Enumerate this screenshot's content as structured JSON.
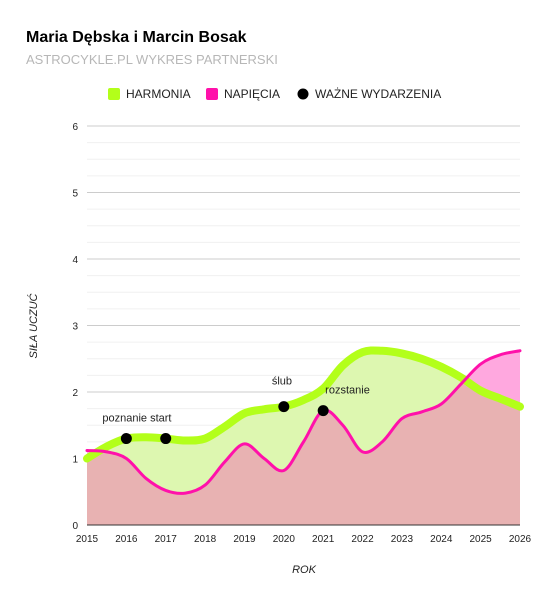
{
  "chart_data": {
    "type": "area",
    "title": "Maria Dębska i Marcin Bosak",
    "subtitle": "ASTROCYKLE.PL WYKRES PARTNERSKI",
    "xlabel": "ROK",
    "ylabel": "SIŁA UCZUĆ",
    "xlim": [
      2015,
      2026
    ],
    "ylim": [
      0,
      6
    ],
    "x_ticks": [
      "2015",
      "2016",
      "2017",
      "2018",
      "2019",
      "2020",
      "2021",
      "2022",
      "2023",
      "2024",
      "2025",
      "2026"
    ],
    "y_ticks": [
      "0",
      "1",
      "2",
      "3",
      "4",
      "5",
      "6"
    ],
    "grid": true,
    "legend_position": "top",
    "legend": [
      {
        "label": "HARMONIA",
        "color": "#b3ff1a",
        "marker": "square"
      },
      {
        "label": "NAPIĘCIA",
        "color": "#ff11aa",
        "marker": "square"
      },
      {
        "label": "WAŻNE WYDARZENIA",
        "color": "#000000",
        "marker": "circle"
      }
    ],
    "series": [
      {
        "name": "HARMONIA",
        "color": "#b3ff1a",
        "x": [
          2015,
          2015.5,
          2016,
          2016.5,
          2017,
          2017.5,
          2018,
          2018.5,
          2019,
          2019.5,
          2020,
          2020.5,
          2021,
          2021.5,
          2022,
          2022.5,
          2023,
          2023.5,
          2024,
          2024.5,
          2025,
          2025.5,
          2026
        ],
        "values": [
          1.0,
          1.18,
          1.3,
          1.32,
          1.3,
          1.27,
          1.3,
          1.48,
          1.68,
          1.74,
          1.78,
          1.88,
          2.05,
          2.4,
          2.6,
          2.62,
          2.58,
          2.5,
          2.38,
          2.22,
          2.02,
          1.9,
          1.78
        ]
      },
      {
        "name": "NAPIĘCIA",
        "color": "#ff11aa",
        "x": [
          2015,
          2015.5,
          2016,
          2016.5,
          2017,
          2017.5,
          2018,
          2018.5,
          2019,
          2019.5,
          2020,
          2020.5,
          2021,
          2021.5,
          2022,
          2022.5,
          2023,
          2023.5,
          2024,
          2024.5,
          2025,
          2025.5,
          2026
        ],
        "values": [
          1.12,
          1.1,
          1.0,
          0.7,
          0.52,
          0.48,
          0.6,
          0.95,
          1.22,
          1.0,
          0.82,
          1.25,
          1.72,
          1.5,
          1.1,
          1.25,
          1.6,
          1.7,
          1.82,
          2.12,
          2.42,
          2.56,
          2.62
        ]
      }
    ],
    "events": [
      {
        "x": 2016,
        "y": 1.3,
        "label": "poznanie start"
      },
      {
        "x": 2017,
        "y": 1.3,
        "label": ""
      },
      {
        "x": 2020,
        "y": 1.78,
        "label": "ślub"
      },
      {
        "x": 2021,
        "y": 1.72,
        "label": "rozstanie"
      }
    ],
    "colors": {
      "harmony_fill": "#ddf7b0",
      "tension_fill": "#ffa8df",
      "overlap_fill": "#e8b2b2"
    }
  }
}
